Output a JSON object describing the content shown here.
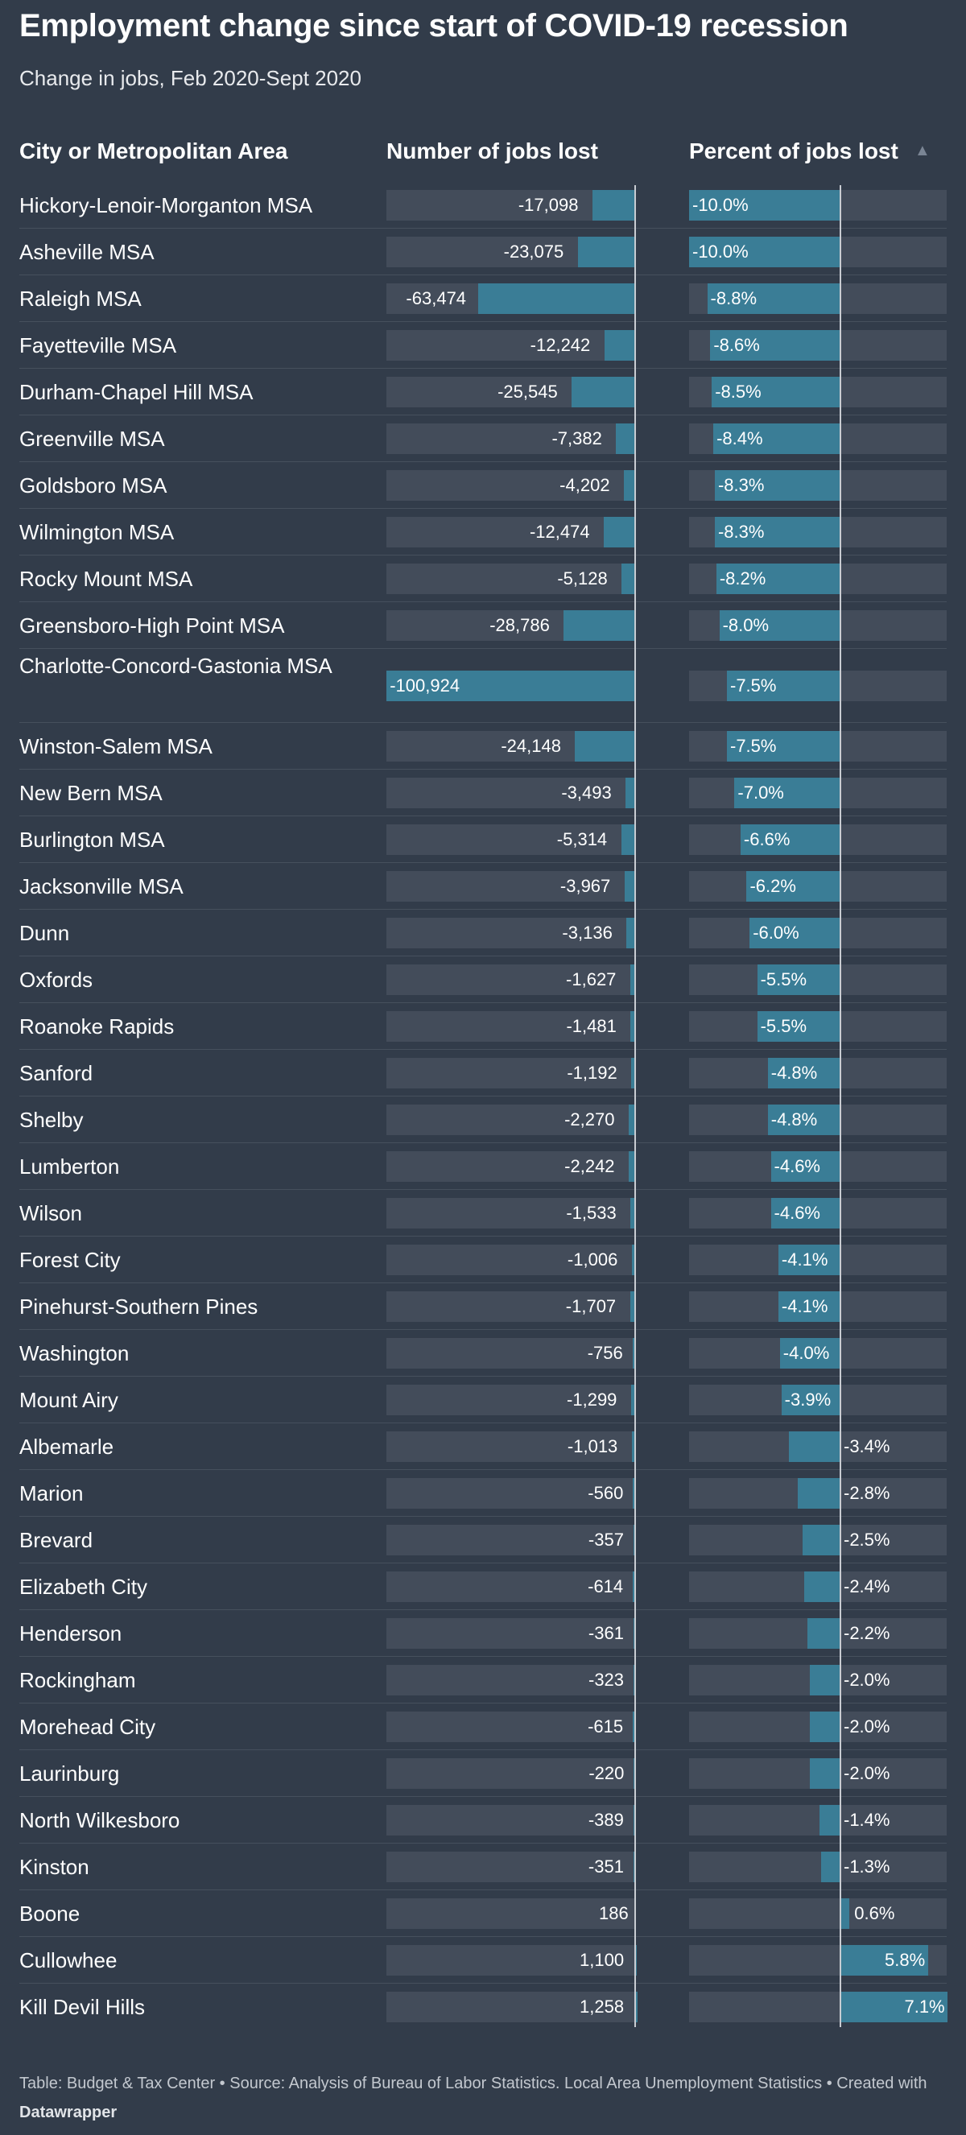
{
  "title": "Employment change since start of COVID-19 recession",
  "subtitle": "Change in jobs, Feb 2020-Sept 2020",
  "columns": {
    "name": "City or Metropolitan Area",
    "jobs": "Number of jobs lost",
    "percent": "Percent of jobs lost"
  },
  "sort_indicator": "▲",
  "footer": {
    "text": "Table: Budget & Tax Center • Source: Analysis of Bureau of Labor Statistics. Local Area Unemployment Statistics • Created with",
    "brand": "Datawrapper"
  },
  "colors": {
    "background": "#323c4a",
    "bar": "#3a7d96",
    "bar_track": "#434c5a"
  },
  "chart_data": {
    "type": "table",
    "sorted_by": "Percent of jobs lost",
    "rows": [
      {
        "name": "Hickory-Lenoir-Morganton MSA",
        "jobs": -17098,
        "jobs_label": "-17,098",
        "pct": -10.0,
        "pct_label": "-10.0%"
      },
      {
        "name": "Asheville MSA",
        "jobs": -23075,
        "jobs_label": "-23,075",
        "pct": -10.0,
        "pct_label": "-10.0%"
      },
      {
        "name": "Raleigh MSA",
        "jobs": -63474,
        "jobs_label": "-63,474",
        "pct": -8.8,
        "pct_label": "-8.8%"
      },
      {
        "name": "Fayetteville MSA",
        "jobs": -12242,
        "jobs_label": "-12,242",
        "pct": -8.6,
        "pct_label": "-8.6%"
      },
      {
        "name": "Durham-Chapel Hill MSA",
        "jobs": -25545,
        "jobs_label": "-25,545",
        "pct": -8.5,
        "pct_label": "-8.5%"
      },
      {
        "name": "Greenville MSA",
        "jobs": -7382,
        "jobs_label": "-7,382",
        "pct": -8.4,
        "pct_label": "-8.4%"
      },
      {
        "name": "Goldsboro MSA",
        "jobs": -4202,
        "jobs_label": "-4,202",
        "pct": -8.3,
        "pct_label": "-8.3%"
      },
      {
        "name": "Wilmington MSA",
        "jobs": -12474,
        "jobs_label": "-12,474",
        "pct": -8.3,
        "pct_label": "-8.3%"
      },
      {
        "name": "Rocky Mount MSA",
        "jobs": -5128,
        "jobs_label": "-5,128",
        "pct": -8.2,
        "pct_label": "-8.2%"
      },
      {
        "name": "Greensboro-High Point MSA",
        "jobs": -28786,
        "jobs_label": "-28,786",
        "pct": -8.0,
        "pct_label": "-8.0%"
      },
      {
        "name": "Charlotte-Concord-Gastonia MSA",
        "jobs": -100924,
        "jobs_label": "-100,924",
        "pct": -7.5,
        "pct_label": "-7.5%"
      },
      {
        "name": "Winston-Salem MSA",
        "jobs": -24148,
        "jobs_label": "-24,148",
        "pct": -7.5,
        "pct_label": "-7.5%"
      },
      {
        "name": "New Bern MSA",
        "jobs": -3493,
        "jobs_label": "-3,493",
        "pct": -7.0,
        "pct_label": "-7.0%"
      },
      {
        "name": "Burlington MSA",
        "jobs": -5314,
        "jobs_label": "-5,314",
        "pct": -6.6,
        "pct_label": "-6.6%"
      },
      {
        "name": "Jacksonville MSA",
        "jobs": -3967,
        "jobs_label": "-3,967",
        "pct": -6.2,
        "pct_label": "-6.2%"
      },
      {
        "name": "Dunn",
        "jobs": -3136,
        "jobs_label": "-3,136",
        "pct": -6.0,
        "pct_label": "-6.0%"
      },
      {
        "name": "Oxfords",
        "jobs": -1627,
        "jobs_label": "-1,627",
        "pct": -5.5,
        "pct_label": "-5.5%"
      },
      {
        "name": "Roanoke Rapids",
        "jobs": -1481,
        "jobs_label": "-1,481",
        "pct": -5.5,
        "pct_label": "-5.5%"
      },
      {
        "name": "Sanford",
        "jobs": -1192,
        "jobs_label": "-1,192",
        "pct": -4.8,
        "pct_label": "-4.8%"
      },
      {
        "name": "Shelby",
        "jobs": -2270,
        "jobs_label": "-2,270",
        "pct": -4.8,
        "pct_label": "-4.8%"
      },
      {
        "name": "Lumberton",
        "jobs": -2242,
        "jobs_label": "-2,242",
        "pct": -4.6,
        "pct_label": "-4.6%"
      },
      {
        "name": "Wilson",
        "jobs": -1533,
        "jobs_label": "-1,533",
        "pct": -4.6,
        "pct_label": "-4.6%"
      },
      {
        "name": "Forest City",
        "jobs": -1006,
        "jobs_label": "-1,006",
        "pct": -4.1,
        "pct_label": "-4.1%"
      },
      {
        "name": "Pinehurst-Southern Pines",
        "jobs": -1707,
        "jobs_label": "-1,707",
        "pct": -4.1,
        "pct_label": "-4.1%"
      },
      {
        "name": "Washington",
        "jobs": -756,
        "jobs_label": "-756",
        "pct": -4.0,
        "pct_label": "-4.0%"
      },
      {
        "name": "Mount Airy",
        "jobs": -1299,
        "jobs_label": "-1,299",
        "pct": -3.9,
        "pct_label": "-3.9%"
      },
      {
        "name": "Albemarle",
        "jobs": -1013,
        "jobs_label": "-1,013",
        "pct": -3.4,
        "pct_label": "-3.4%"
      },
      {
        "name": "Marion",
        "jobs": -560,
        "jobs_label": "-560",
        "pct": -2.8,
        "pct_label": "-2.8%"
      },
      {
        "name": "Brevard",
        "jobs": -357,
        "jobs_label": "-357",
        "pct": -2.5,
        "pct_label": "-2.5%"
      },
      {
        "name": "Elizabeth City",
        "jobs": -614,
        "jobs_label": "-614",
        "pct": -2.4,
        "pct_label": "-2.4%"
      },
      {
        "name": "Henderson",
        "jobs": -361,
        "jobs_label": "-361",
        "pct": -2.2,
        "pct_label": "-2.2%"
      },
      {
        "name": "Rockingham",
        "jobs": -323,
        "jobs_label": "-323",
        "pct": -2.0,
        "pct_label": "-2.0%"
      },
      {
        "name": "Morehead City",
        "jobs": -615,
        "jobs_label": "-615",
        "pct": -2.0,
        "pct_label": "-2.0%"
      },
      {
        "name": "Laurinburg",
        "jobs": -220,
        "jobs_label": "-220",
        "pct": -2.0,
        "pct_label": "-2.0%"
      },
      {
        "name": "North Wilkesboro",
        "jobs": -389,
        "jobs_label": "-389",
        "pct": -1.4,
        "pct_label": "-1.4%"
      },
      {
        "name": "Kinston",
        "jobs": -351,
        "jobs_label": "-351",
        "pct": -1.3,
        "pct_label": "-1.3%"
      },
      {
        "name": "Boone",
        "jobs": 186,
        "jobs_label": "186",
        "pct": 0.6,
        "pct_label": "0.6%"
      },
      {
        "name": "Cullowhee",
        "jobs": 1100,
        "jobs_label": "1,100",
        "pct": 5.8,
        "pct_label": "5.8%"
      },
      {
        "name": "Kill Devil Hills",
        "jobs": 1258,
        "jobs_label": "1,258",
        "pct": 7.1,
        "pct_label": "7.1%"
      }
    ]
  }
}
